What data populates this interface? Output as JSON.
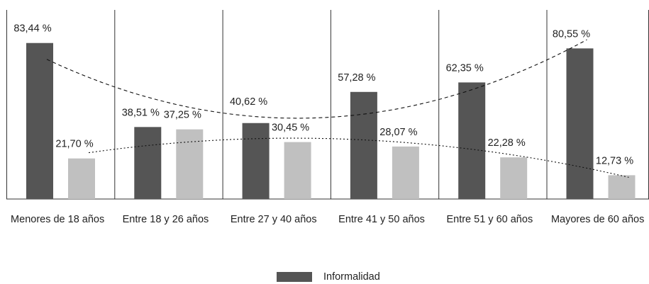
{
  "chart_data": {
    "type": "bar",
    "categories": [
      "Menores de 18 años",
      "Entre 18 y 26 años",
      "Entre 27 y 40 años",
      "Entre 41 y 50 años",
      "Entre 51 y 60 años",
      "Mayores de 60 años"
    ],
    "series": [
      {
        "name": "Informalidad",
        "values": [
          83.44,
          38.51,
          40.62,
          57.28,
          62.35,
          80.55
        ],
        "color": "#555555",
        "labels": [
          "83,44 %",
          "38,51 %",
          "40,62 %",
          "57,28 %",
          "62,35 %",
          "80,55 %"
        ]
      },
      {
        "values": [
          21.7,
          37.25,
          30.45,
          28.07,
          22.28,
          12.73
        ],
        "color": "#c0c0c0",
        "labels": [
          "21,70 %",
          "37,25 %",
          "30,45 %",
          "28,07 %",
          "22,28 %",
          "12,73 %"
        ]
      }
    ],
    "trendlines": [
      {
        "series": 0,
        "style": "dashed"
      },
      {
        "series": 1,
        "style": "dotted"
      }
    ],
    "ylim": [
      0,
      100
    ],
    "grid": false,
    "legend_position": "bottom"
  },
  "legend": {
    "label": "Informalidad",
    "color": "#555555"
  }
}
